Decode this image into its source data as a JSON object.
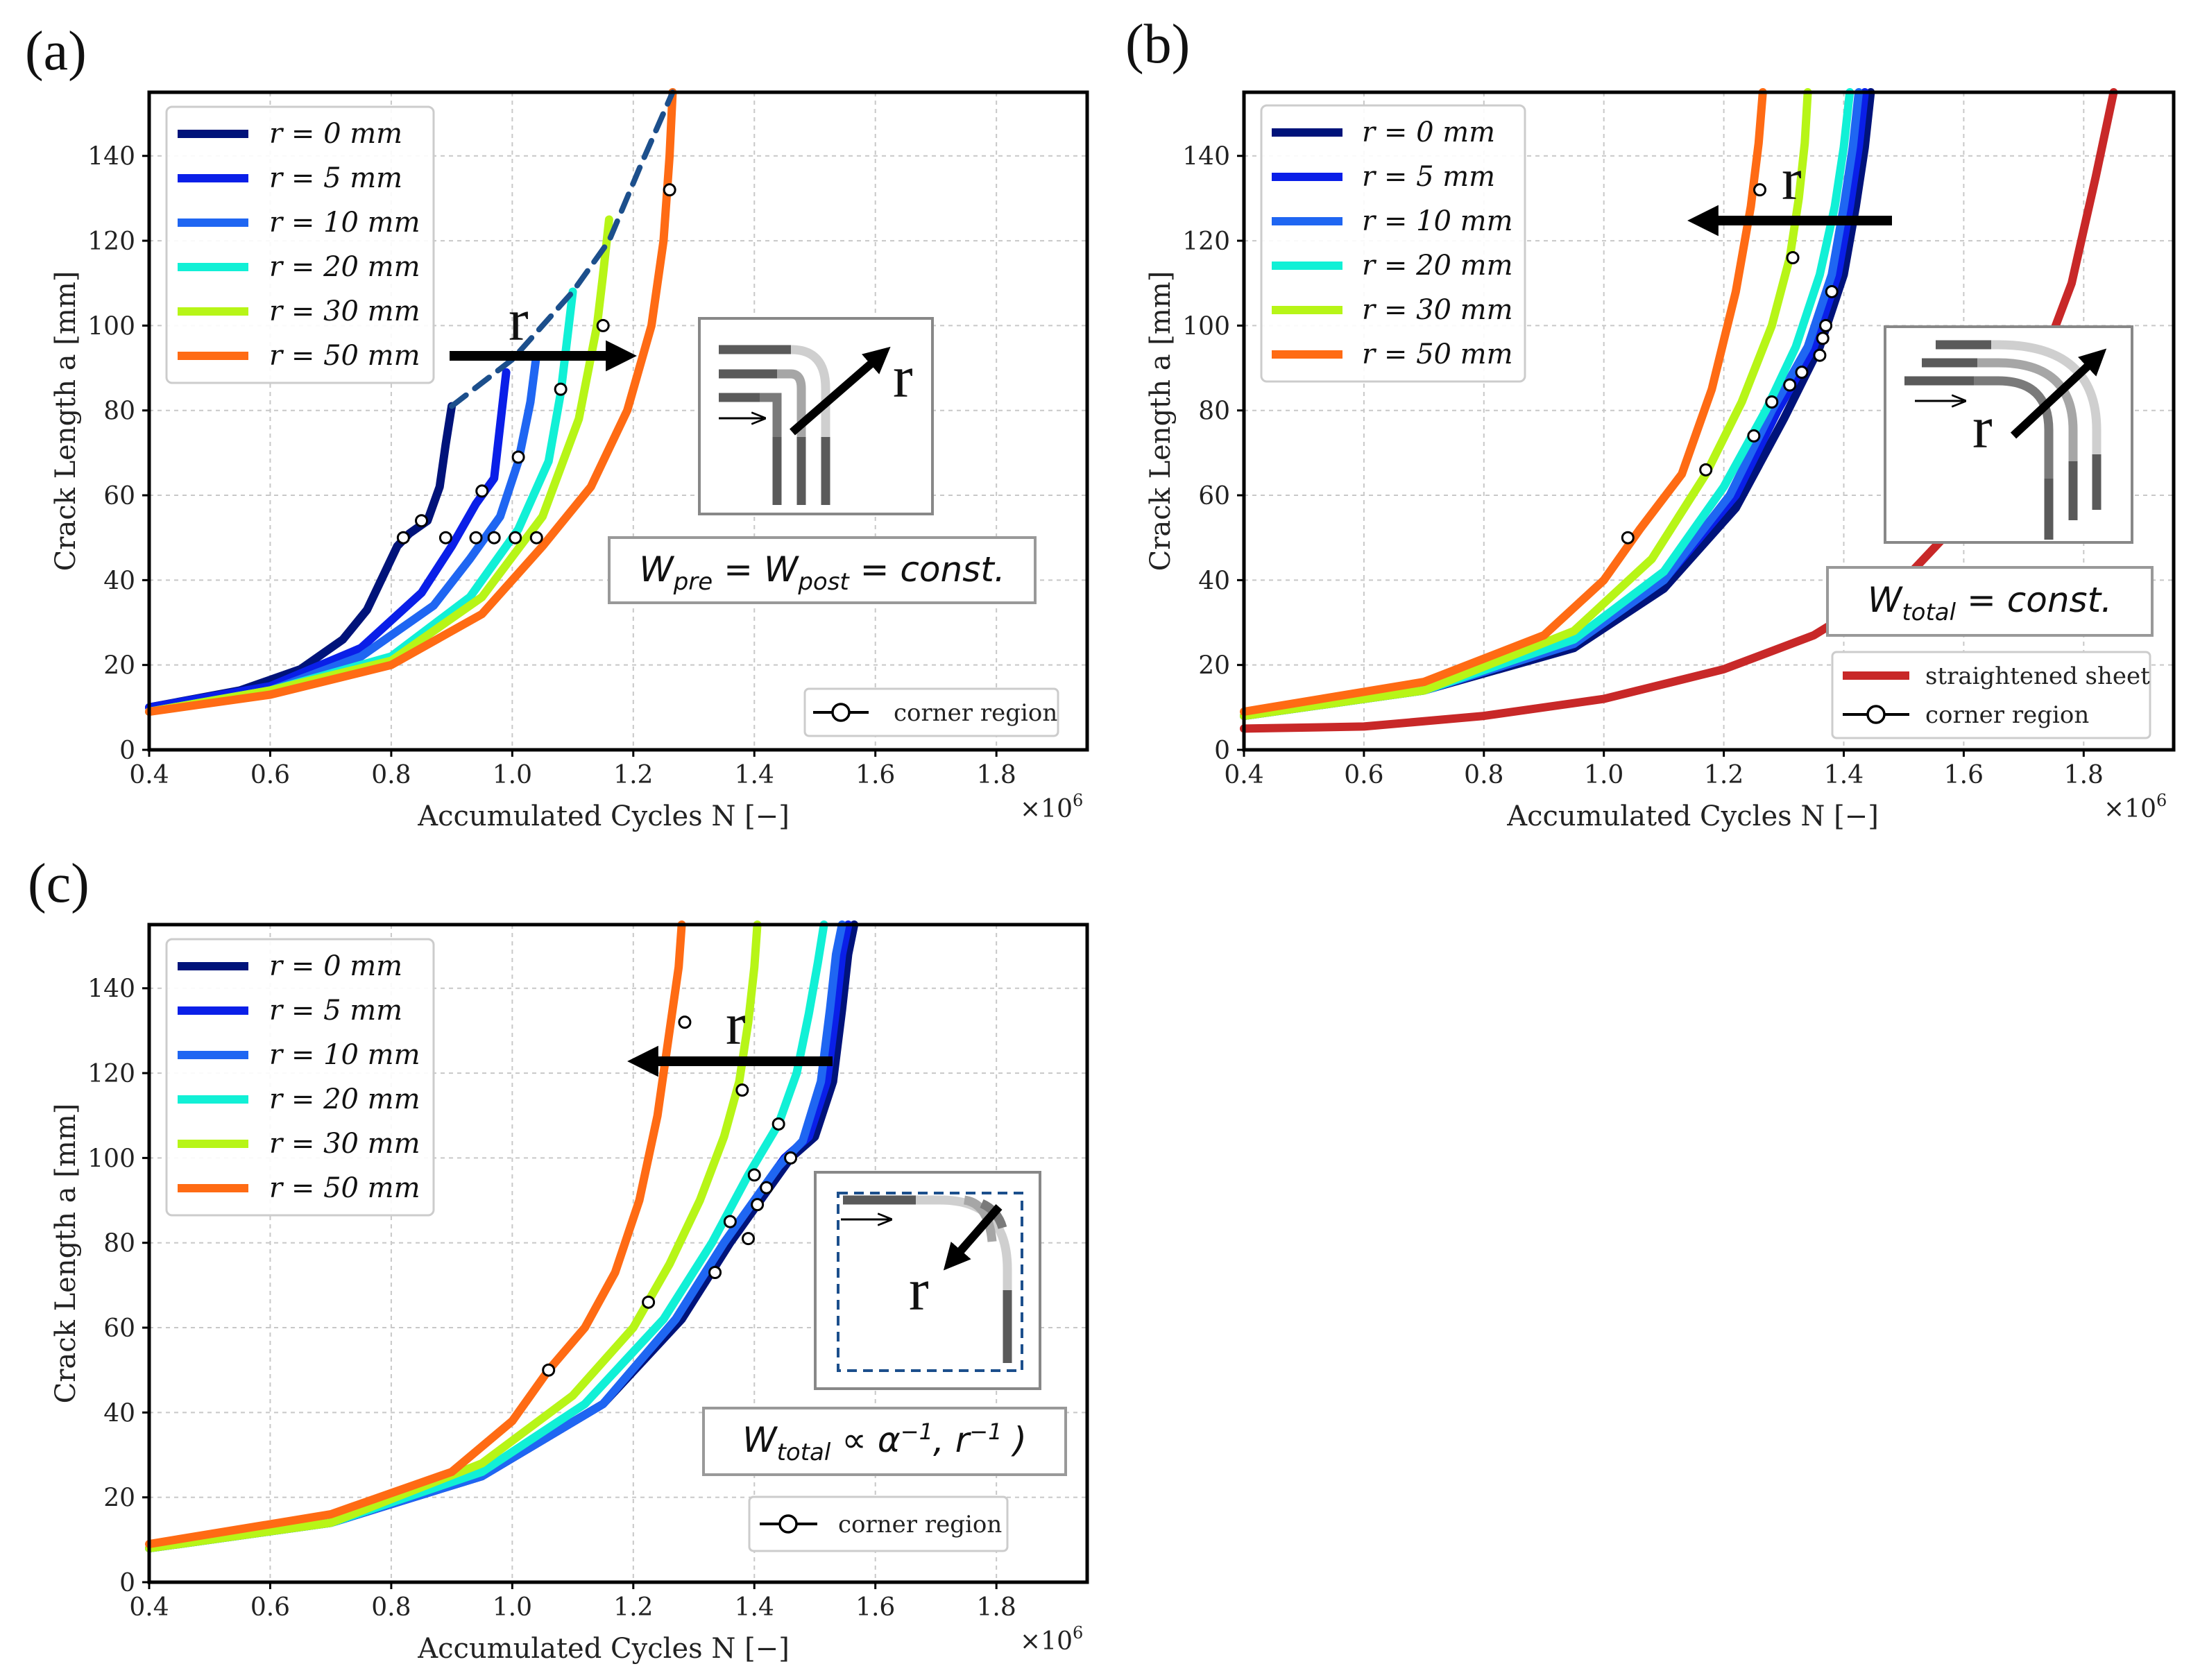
{
  "chart_data": [
    {
      "type": "line",
      "panel": "(a)",
      "xlabel": "Accumulated Cycles N [−]",
      "ylabel": "Crack Length a [mm]",
      "x_multiplier": "×10",
      "x_multiplier_exp": "6",
      "xlim": [
        0.4,
        1.95
      ],
      "ylim": [
        0,
        155
      ],
      "xticks": [
        "0.4",
        "0.6",
        "0.8",
        "1.0",
        "1.2",
        "1.4",
        "1.6",
        "1.8"
      ],
      "yticks": [
        "0",
        "20",
        "40",
        "60",
        "80",
        "100",
        "120",
        "140"
      ],
      "grid": true,
      "legend": [
        "r = 0 mm",
        "r = 5 mm",
        "r = 10 mm",
        "r = 20 mm",
        "r = 30 mm",
        "r = 50 mm"
      ],
      "corner_label": "corner region",
      "equation": "W_pre = W_post = const.",
      "arrow_label": "r",
      "arrow_direction": "right",
      "series": [
        {
          "name": "r = 0 mm",
          "color": "#00137a",
          "x": [
            0.4,
            0.55,
            0.65,
            0.72,
            0.76,
            0.79,
            0.81,
            0.83,
            0.86,
            0.88,
            0.89,
            0.9
          ],
          "y": [
            10,
            14,
            19,
            26,
            33,
            42,
            48,
            51,
            54,
            62,
            72,
            81
          ]
        },
        {
          "name": "r = 5 mm",
          "color": "#0a1fe8",
          "x": [
            0.4,
            0.6,
            0.75,
            0.85,
            0.9,
            0.94,
            0.97,
            0.99
          ],
          "y": [
            10,
            15,
            24,
            37,
            48,
            58,
            64,
            89
          ]
        },
        {
          "name": "r = 10 mm",
          "color": "#1f66f2",
          "x": [
            0.4,
            0.6,
            0.75,
            0.87,
            0.93,
            0.98,
            1.01,
            1.03,
            1.04
          ],
          "y": [
            9,
            14,
            22,
            34,
            45,
            55,
            68,
            82,
            93
          ]
        },
        {
          "name": "r = 20 mm",
          "color": "#11f0d6",
          "x": [
            0.4,
            0.6,
            0.8,
            0.93,
            1.01,
            1.06,
            1.08,
            1.09,
            1.1
          ],
          "y": [
            9,
            14,
            22,
            36,
            52,
            68,
            84,
            96,
            108
          ]
        },
        {
          "name": "r = 30 mm",
          "color": "#b7f517",
          "x": [
            0.4,
            0.6,
            0.8,
            0.95,
            1.05,
            1.11,
            1.14,
            1.15,
            1.16
          ],
          "y": [
            9,
            14,
            21,
            36,
            55,
            78,
            100,
            112,
            125
          ]
        },
        {
          "name": "r = 50 mm",
          "color": "#ff6b14",
          "x": [
            0.4,
            0.6,
            0.8,
            0.95,
            1.05,
            1.13,
            1.19,
            1.23,
            1.25,
            1.26,
            1.265
          ],
          "y": [
            9,
            13,
            20,
            32,
            48,
            62,
            80,
            100,
            120,
            140,
            155
          ]
        },
        {
          "name": "envelope",
          "color": "#1c4f8c",
          "dashed": true,
          "x": [
            0.9,
            1.0,
            1.1,
            1.16,
            1.21,
            1.265
          ],
          "y": [
            81,
            92,
            108,
            120,
            137,
            155
          ]
        }
      ],
      "corner_points": {
        "x": [
          0.82,
          0.85,
          0.89,
          0.94,
          0.97,
          1.005,
          1.04,
          0.95,
          1.01,
          1.08,
          1.15,
          1.26
        ],
        "y": [
          50,
          54,
          50,
          50,
          50,
          50,
          50,
          61,
          69,
          85,
          100,
          132
        ]
      }
    },
    {
      "type": "line",
      "panel": "(b)",
      "xlabel": "Accumulated Cycles N [−]",
      "ylabel": "Crack Length a [mm]",
      "x_multiplier": "×10",
      "x_multiplier_exp": "6",
      "xlim": [
        0.4,
        1.95
      ],
      "ylim": [
        0,
        155
      ],
      "xticks": [
        "0.4",
        "0.6",
        "0.8",
        "1.0",
        "1.2",
        "1.4",
        "1.6",
        "1.8"
      ],
      "yticks": [
        "0",
        "20",
        "40",
        "60",
        "80",
        "100",
        "120",
        "140"
      ],
      "grid": true,
      "legend": [
        "r = 0 mm",
        "r = 5 mm",
        "r = 10 mm",
        "r = 20 mm",
        "r = 30 mm",
        "r = 50 mm"
      ],
      "extra_legend": [
        "straightened sheet",
        "corner region"
      ],
      "equation": "W_total = const.",
      "arrow_label": "r",
      "arrow_direction": "left",
      "series": [
        {
          "name": "r = 0 mm",
          "color": "#00137a",
          "x": [
            0.4,
            0.7,
            0.95,
            1.1,
            1.22,
            1.3,
            1.36,
            1.4,
            1.42,
            1.435,
            1.445
          ],
          "y": [
            8,
            14,
            24,
            38,
            57,
            78,
            95,
            112,
            128,
            142,
            155
          ]
        },
        {
          "name": "r = 5 mm",
          "color": "#0a1fe8",
          "x": [
            0.4,
            0.7,
            0.95,
            1.1,
            1.22,
            1.29,
            1.35,
            1.39,
            1.41,
            1.425,
            1.435
          ],
          "y": [
            8,
            14,
            25,
            40,
            60,
            80,
            95,
            112,
            128,
            142,
            155
          ]
        },
        {
          "name": "r = 10 mm",
          "color": "#1f66f2",
          "x": [
            0.4,
            0.7,
            0.95,
            1.1,
            1.21,
            1.28,
            1.34,
            1.38,
            1.4,
            1.415,
            1.425
          ],
          "y": [
            8,
            14,
            25,
            40,
            60,
            80,
            95,
            112,
            128,
            142,
            155
          ]
        },
        {
          "name": "r = 20 mm",
          "color": "#11f0d6",
          "x": [
            0.4,
            0.7,
            0.95,
            1.1,
            1.2,
            1.27,
            1.32,
            1.36,
            1.385,
            1.4,
            1.41
          ],
          "y": [
            8,
            14,
            26,
            42,
            62,
            80,
            95,
            112,
            128,
            142,
            155
          ]
        },
        {
          "name": "r = 30 mm",
          "color": "#b7f517",
          "x": [
            0.4,
            0.7,
            0.95,
            1.08,
            1.17,
            1.23,
            1.28,
            1.31,
            1.325,
            1.335,
            1.34
          ],
          "y": [
            8,
            14,
            28,
            45,
            65,
            82,
            100,
            116,
            130,
            143,
            155
          ]
        },
        {
          "name": "r = 50 mm",
          "color": "#ff6b14",
          "x": [
            0.4,
            0.7,
            0.9,
            1.0,
            1.06,
            1.13,
            1.18,
            1.22,
            1.245,
            1.258,
            1.265
          ],
          "y": [
            9,
            16,
            27,
            40,
            52,
            65,
            85,
            108,
            128,
            143,
            155
          ]
        },
        {
          "name": "straightened sheet",
          "color": "#c82828",
          "x": [
            0.4,
            0.6,
            0.8,
            1.0,
            1.2,
            1.35,
            1.5,
            1.6,
            1.7,
            1.78,
            1.82,
            1.85
          ],
          "y": [
            5,
            5.5,
            8,
            12,
            19,
            27,
            40,
            55,
            80,
            110,
            135,
            155
          ]
        }
      ],
      "corner_points": {
        "x": [
          1.04,
          1.17,
          1.25,
          1.28,
          1.31,
          1.33,
          1.36,
          1.365,
          1.37,
          1.38,
          1.315,
          1.26
        ],
        "y": [
          50,
          66,
          74,
          82,
          86,
          89,
          93,
          97,
          100,
          108,
          116,
          132
        ]
      }
    },
    {
      "type": "line",
      "panel": "(c)",
      "xlabel": "Accumulated Cycles N [−]",
      "ylabel": "Crack Length a [mm]",
      "x_multiplier": "×10",
      "x_multiplier_exp": "6",
      "xlim": [
        0.4,
        1.95
      ],
      "ylim": [
        0,
        155
      ],
      "xticks": [
        "0.4",
        "0.6",
        "0.8",
        "1.0",
        "1.2",
        "1.4",
        "1.6",
        "1.8"
      ],
      "yticks": [
        "0",
        "20",
        "40",
        "60",
        "80",
        "100",
        "120",
        "140"
      ],
      "grid": true,
      "legend": [
        "r = 0 mm",
        "r = 5 mm",
        "r = 10 mm",
        "r = 20 mm",
        "r = 30 mm",
        "r = 50 mm"
      ],
      "corner_label": "corner region",
      "equation": "W_total ∝ α⁻¹, r⁻¹ )",
      "arrow_label": "r",
      "arrow_direction": "left",
      "series": [
        {
          "name": "r = 0 mm",
          "color": "#00137a",
          "x": [
            0.4,
            0.7,
            0.95,
            1.15,
            1.28,
            1.36,
            1.42,
            1.46,
            1.5,
            1.53,
            1.545,
            1.555,
            1.565
          ],
          "y": [
            8,
            14,
            25,
            42,
            62,
            80,
            92,
            100,
            105,
            118,
            135,
            148,
            155
          ]
        },
        {
          "name": "r = 5 mm",
          "color": "#0a1fe8",
          "x": [
            0.4,
            0.7,
            0.95,
            1.15,
            1.27,
            1.35,
            1.41,
            1.45,
            1.49,
            1.52,
            1.535,
            1.545,
            1.555
          ],
          "y": [
            8,
            14,
            25,
            42,
            62,
            80,
            92,
            100,
            105,
            118,
            135,
            148,
            155
          ]
        },
        {
          "name": "r = 10 mm",
          "color": "#1f66f2",
          "x": [
            0.4,
            0.7,
            0.95,
            1.15,
            1.27,
            1.35,
            1.4,
            1.44,
            1.48,
            1.51,
            1.525,
            1.535,
            1.545
          ],
          "y": [
            8,
            14,
            25,
            42,
            62,
            80,
            90,
            98,
            104,
            118,
            135,
            148,
            155
          ]
        },
        {
          "name": "r = 20 mm",
          "color": "#11f0d6",
          "x": [
            0.4,
            0.7,
            0.95,
            1.12,
            1.25,
            1.33,
            1.39,
            1.44,
            1.47,
            1.49,
            1.505,
            1.515
          ],
          "y": [
            8,
            14,
            26,
            42,
            62,
            80,
            96,
            108,
            120,
            134,
            146,
            155
          ]
        },
        {
          "name": "r = 30 mm",
          "color": "#b7f517",
          "x": [
            0.4,
            0.7,
            0.95,
            1.1,
            1.2,
            1.26,
            1.31,
            1.35,
            1.375,
            1.39,
            1.4,
            1.405
          ],
          "y": [
            8,
            14,
            28,
            44,
            60,
            75,
            90,
            105,
            118,
            132,
            145,
            155
          ]
        },
        {
          "name": "r = 50 mm",
          "color": "#ff6b14",
          "x": [
            0.4,
            0.7,
            0.9,
            1.0,
            1.06,
            1.12,
            1.17,
            1.21,
            1.24,
            1.26,
            1.275,
            1.28
          ],
          "y": [
            9,
            16,
            26,
            38,
            50,
            60,
            73,
            90,
            110,
            130,
            145,
            155
          ]
        }
      ],
      "corner_points": {
        "x": [
          1.06,
          1.225,
          1.335,
          1.36,
          1.39,
          1.4,
          1.405,
          1.42,
          1.44,
          1.46,
          1.38,
          1.285
        ],
        "y": [
          50,
          66,
          73,
          85,
          81,
          96,
          89,
          93,
          108,
          100,
          116,
          132
        ]
      }
    }
  ]
}
